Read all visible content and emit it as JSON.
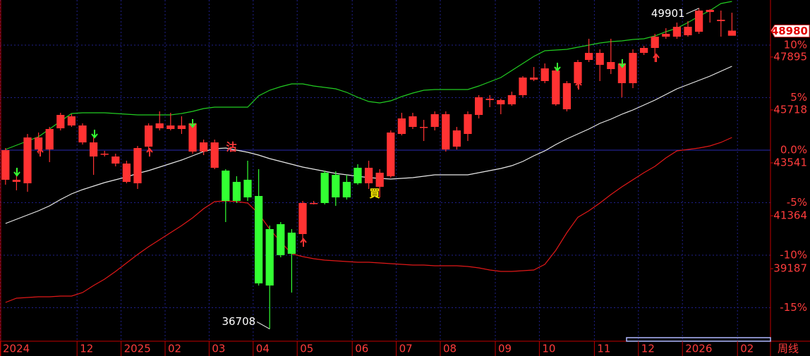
{
  "chart_data": {
    "type": "candlestick",
    "categories": [
      "2024",
      null,
      null,
      null,
      null,
      null,
      null,
      "12",
      null,
      null,
      null,
      "2025",
      null,
      null,
      null,
      "02",
      null,
      null,
      null,
      "03",
      null,
      null,
      null,
      "04",
      null,
      null,
      null,
      "05",
      null,
      null,
      null,
      null,
      "06",
      null,
      null,
      null,
      "07",
      null,
      null,
      null,
      "08",
      null,
      null,
      null,
      null,
      "09",
      null,
      null,
      null,
      "10",
      null,
      null,
      null,
      null,
      "11",
      null,
      null,
      null,
      "12",
      null,
      null,
      null,
      "2026",
      null,
      null,
      null,
      null,
      "02",
      null,
      null
    ],
    "open": [
      42845,
      42758,
      42700,
      44092,
      44092,
      44962,
      45078,
      44382,
      43802,
      43889,
      43512,
      42758,
      42700,
      44208,
      44962,
      44933,
      44933,
      44005,
      44005,
      43338,
      43222,
      42758,
      42845,
      42178,
      40815,
      41018,
      40670,
      40612,
      41859,
      43135,
      43048,
      42758,
      43338,
      42700,
      42555,
      42990,
      44730,
      45020,
      44991,
      45020,
      44092,
      44208,
      44730,
      45513,
      46122,
      45948,
      45948,
      46325,
      46963,
      46905,
      45948,
      45745,
      46818,
      47775,
      47572,
      47398,
      46818,
      46818,
      48065,
      48268,
      48732,
      48732,
      48790,
      48935,
      49747,
      49370,
      48770,
      null,
      null,
      null
    ],
    "high": [
      44150,
      43280,
      44730,
      44788,
      45020,
      45600,
      45542,
      45165,
      44585,
      44034,
      43918,
      43628,
      44237,
      45165,
      45658,
      45600,
      45455,
      45252,
      44498,
      44498,
      43280,
      42990,
      43628,
      43280,
      40960,
      41105,
      40815,
      41975,
      41975,
      43222,
      43193,
      43048,
      43483,
      43628,
      43280,
      44875,
      45600,
      45600,
      45310,
      45658,
      45658,
      45020,
      45658,
      46325,
      46325,
      46180,
      46470,
      47108,
      47485,
      47630,
      47485,
      46905,
      47775,
      48645,
      48210,
      48645,
      47775,
      48210,
      48355,
      48848,
      49080,
      49312,
      49370,
      49901,
      49860,
      49805,
      49718,
      null,
      null,
      null
    ],
    "low": [
      42642,
      42410,
      42352,
      43918,
      43570,
      44875,
      45020,
      44295,
      43048,
      43802,
      43396,
      42700,
      42468,
      44005,
      44875,
      44875,
      44730,
      43918,
      43860,
      43280,
      41105,
      41888,
      41975,
      38495,
      36708,
      39655,
      38205,
      40380,
      41830,
      41830,
      41772,
      42033,
      42642,
      42468,
      42120,
      42932,
      44672,
      44933,
      44440,
      44875,
      44005,
      44092,
      44440,
      45368,
      45832,
      45542,
      45890,
      46238,
      46905,
      46818,
      45890,
      45658,
      46615,
      47688,
      46905,
      47195,
      46238,
      46615,
      47978,
      47688,
      48645,
      48645,
      48732,
      48848,
      49312,
      48732,
      48848,
      null,
      null,
      null
    ],
    "close": [
      44063,
      42845,
      44585,
      44585,
      44933,
      45513,
      45455,
      45078,
      44382,
      43918,
      43802,
      43512,
      44150,
      45078,
      45165,
      45078,
      45078,
      45165,
      44382,
      44382,
      41975,
      41975,
      42120,
      38582,
      38495,
      39742,
      39800,
      41888,
      41888,
      41888,
      42120,
      42120,
      42700,
      43338,
      43135,
      44788,
      45368,
      45455,
      45020,
      45542,
      45542,
      44875,
      45542,
      46238,
      46180,
      46122,
      46325,
      47050,
      47050,
      47427,
      47340,
      46818,
      47688,
      48065,
      48065,
      47688,
      47630,
      48065,
      48268,
      48732,
      48848,
      49138,
      49138,
      49805,
      49834,
      49428,
      48980,
      null,
      null,
      null
    ],
    "up_color": "#ff3232",
    "down_color": "#33ff33",
    "bands": [
      {
        "color": "#22cc22",
        "values": [
          44092,
          44266,
          44440,
          44614,
          44933,
          45252,
          45571,
          45600,
          45600,
          45600,
          45571,
          45542,
          45513,
          45513,
          45513,
          45513,
          45571,
          45658,
          45774,
          45832,
          45832,
          45832,
          45832,
          46296,
          46528,
          46673,
          46789,
          46789,
          46702,
          46644,
          46586,
          46441,
          46238,
          46064,
          46006,
          46093,
          46267,
          46412,
          46528,
          46557,
          46557,
          46557,
          46557,
          46702,
          46876,
          47050,
          47340,
          47630,
          47920,
          48152,
          48181,
          48210,
          48297,
          48384,
          48471,
          48529,
          48558,
          48616,
          48645,
          48761,
          48935,
          49080,
          49312,
          49573,
          49805,
          50095,
          50182,
          null,
          null,
          null
        ]
      },
      {
        "color": "#e8e8e8",
        "values": [
          41047,
          41221,
          41395,
          41569,
          41772,
          42033,
          42265,
          42439,
          42584,
          42729,
          42845,
          42961,
          43106,
          43222,
          43367,
          43512,
          43657,
          43831,
          44005,
          44121,
          44150,
          44063,
          43976,
          43860,
          43715,
          43599,
          43483,
          43367,
          43280,
          43193,
          43106,
          43048,
          42990,
          42932,
          42903,
          42874,
          42903,
          42932,
          42990,
          43048,
          43048,
          43048,
          43048,
          43135,
          43222,
          43309,
          43425,
          43599,
          43831,
          44034,
          44295,
          44527,
          44730,
          44933,
          45165,
          45339,
          45541,
          45716,
          45919,
          46122,
          46354,
          46586,
          46759,
          46934,
          47108,
          47311,
          47514,
          null,
          null,
          null
        ]
      },
      {
        "color": "#e01818",
        "values": [
          37799,
          37973,
          38002,
          38031,
          38031,
          38060,
          38060,
          38205,
          38495,
          38756,
          39075,
          39423,
          39771,
          40090,
          40380,
          40670,
          40960,
          41279,
          41656,
          41946,
          41975,
          41946,
          41888,
          41453,
          40815,
          40293,
          39800,
          39684,
          39597,
          39539,
          39510,
          39481,
          39452,
          39452,
          39423,
          39394,
          39365,
          39336,
          39336,
          39307,
          39307,
          39307,
          39278,
          39220,
          39133,
          39075,
          39075,
          39104,
          39133,
          39365,
          39945,
          40670,
          41302,
          41569,
          41888,
          42236,
          42555,
          42845,
          43135,
          43396,
          43744,
          44034,
          44092,
          44150,
          44237,
          44382,
          44585,
          null,
          null,
          null
        ]
      }
    ],
    "ylim": [
      36233,
      50240
    ],
    "yticks": [
      39187,
      41364,
      43541,
      45718,
      47895
    ],
    "y2lim": [
      -18.12,
      14.3
    ],
    "y2ticks": [
      {
        "value": 10,
        "label": "10%"
      },
      {
        "value": 5,
        "label": "5%"
      },
      {
        "value": 0,
        "label": "0.0%"
      },
      {
        "value": -5,
        "label": "-5%"
      },
      {
        "value": -10,
        "label": "-10%"
      },
      {
        "value": -15,
        "label": "-15%"
      }
    ],
    "grid": true,
    "last_price": 48980,
    "annotations": [
      36708,
      49901
    ],
    "signals": [
      "沽",
      "買"
    ],
    "period": "周线"
  }
}
